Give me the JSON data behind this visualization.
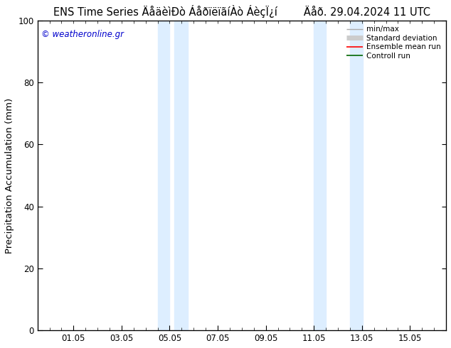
{
  "title": "ENS Time Series ÄåäèìÐò ÁåðïëïãíÀò ÁèçÏ¿í        Äåð. 29.04.2024 11 UTC",
  "ylabel": "Precipitation Accumulation (mm)",
  "ylim": [
    0,
    100
  ],
  "yticks": [
    0,
    20,
    40,
    60,
    80,
    100
  ],
  "xlim": [
    -0.5,
    16.5
  ],
  "x_ticks_labels": [
    "01.05",
    "03.05",
    "05.05",
    "07.05",
    "09.05",
    "11.05",
    "13.05",
    "15.05"
  ],
  "x_ticks_positions": [
    1.0,
    3.0,
    5.0,
    7.0,
    9.0,
    11.0,
    13.0,
    15.0
  ],
  "minor_x_ticks": [
    0.0,
    0.5,
    1.0,
    1.5,
    2.0,
    2.5,
    3.0,
    3.5,
    4.0,
    4.5,
    5.0,
    5.5,
    6.0,
    6.5,
    7.0,
    7.5,
    8.0,
    8.5,
    9.0,
    9.5,
    10.0,
    10.5,
    11.0,
    11.5,
    12.0,
    12.5,
    13.0,
    13.5,
    14.0,
    14.5,
    15.0,
    15.5,
    16.0
  ],
  "shaded_regions": [
    {
      "x_start": 4.5,
      "x_end": 5.0,
      "color": "#ddeeff"
    },
    {
      "x_start": 5.2,
      "x_end": 5.75,
      "color": "#ddeeff"
    },
    {
      "x_start": 11.0,
      "x_end": 11.5,
      "color": "#ddeeff"
    },
    {
      "x_start": 12.5,
      "x_end": 13.05,
      "color": "#ddeeff"
    }
  ],
  "background_color": "#ffffff",
  "plot_bg_color": "#ffffff",
  "watermark_text": "© weatheronline.gr",
  "watermark_color": "#0000cc",
  "legend_items": [
    {
      "label": "min/max",
      "color": "#aaaaaa",
      "lw": 1.0
    },
    {
      "label": "Standard deviation",
      "color": "#cccccc",
      "lw": 5
    },
    {
      "label": "Ensemble mean run",
      "color": "#ff0000",
      "lw": 1.2
    },
    {
      "label": "Controll run",
      "color": "#006600",
      "lw": 1.2
    }
  ],
  "title_fontsize": 10.5,
  "tick_fontsize": 8.5,
  "label_fontsize": 9.5
}
